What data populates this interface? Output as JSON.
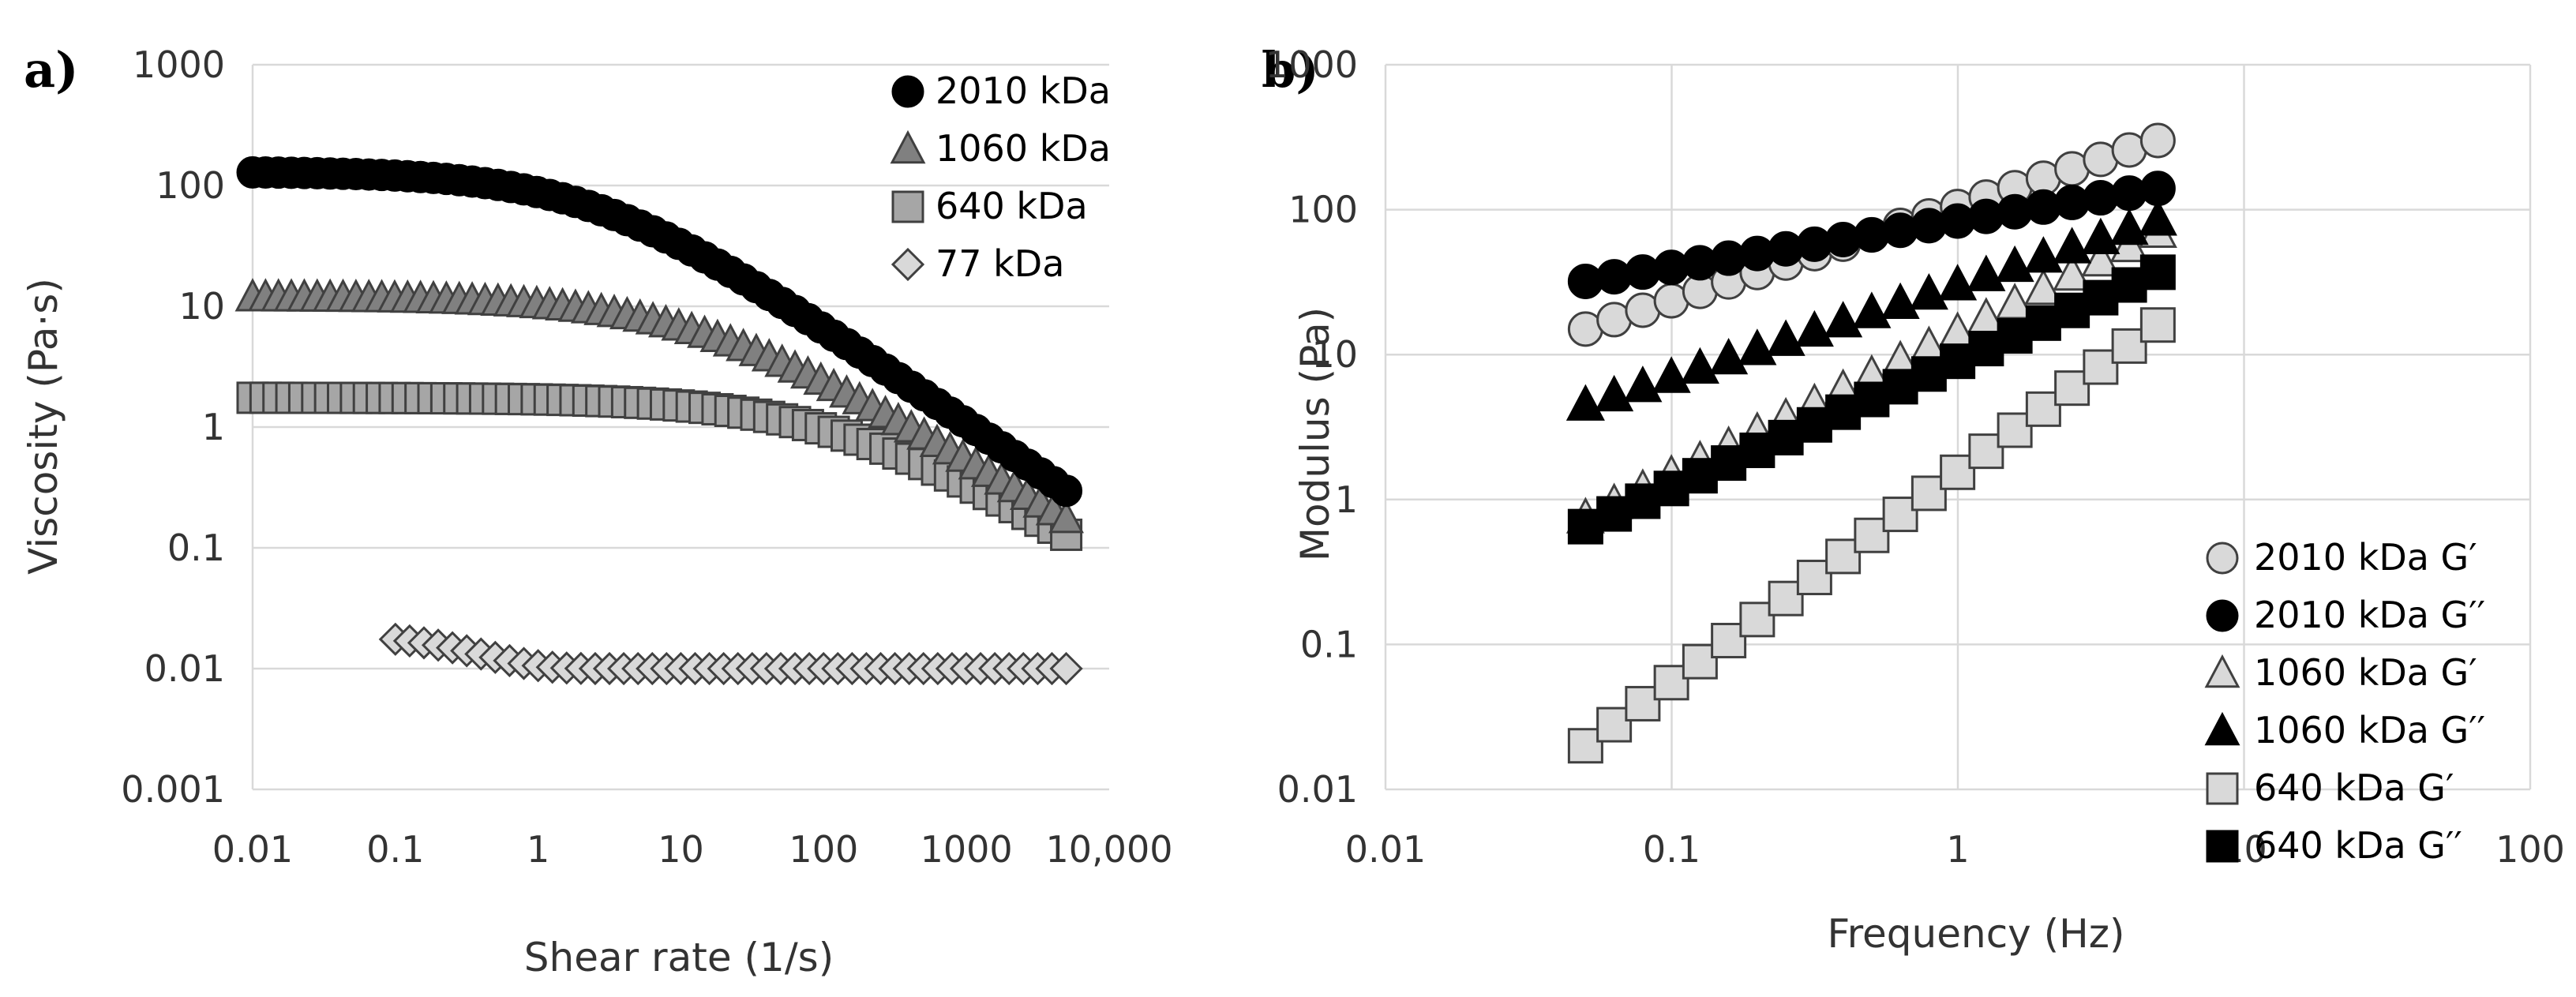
{
  "colors": {
    "black": "#000000",
    "dark_gray": "#808080",
    "mid_gray": "#a6a6a6",
    "light_gray": "#d9d9d9",
    "white": "#ffffff",
    "outline": "#404040"
  },
  "chart_data": [
    {
      "id": "a",
      "panel_label": "a)",
      "type": "scatter",
      "xscale": "log",
      "yscale": "log",
      "xlim": [
        0.01,
        10000
      ],
      "ylim": [
        0.001,
        1000
      ],
      "xlabel": "Shear rate (1/s)",
      "ylabel": "Viscosity (Pa·s)",
      "xticks": [
        0.01,
        0.1,
        1,
        10,
        100,
        1000,
        10000
      ],
      "xtick_labels": [
        "0.01",
        "0.1",
        "1",
        "10",
        "100",
        "1000",
        "10,000"
      ],
      "yticks": [
        0.001,
        0.01,
        0.1,
        1,
        10,
        100,
        1000
      ],
      "ytick_labels": [
        "0.001",
        "0.01",
        "0.1",
        "1",
        "10",
        "100",
        "1000"
      ],
      "grid": "horizontal",
      "legend_position": "top-right",
      "series": [
        {
          "name": "2010 kDa",
          "marker": "circle",
          "fill": "#000000",
          "stroke": "#000000",
          "x_range": [
            0.01,
            5000
          ],
          "n": 64,
          "model": "cross",
          "eta0": 130,
          "lambda": 0.4,
          "m": 0.8
        },
        {
          "name": "1060 kDa",
          "marker": "triangle",
          "fill": "#808080",
          "stroke": "#404040",
          "x_range": [
            0.01,
            5000
          ],
          "n": 64,
          "model": "cross",
          "eta0": 12,
          "lambda": 0.07,
          "m": 0.72
        },
        {
          "name": "640 kDa",
          "marker": "square",
          "fill": "#a6a6a6",
          "stroke": "#404040",
          "x_range": [
            0.01,
            5000
          ],
          "n": 64,
          "model": "cross",
          "eta0": 1.75,
          "lambda": 0.0075,
          "m": 0.7
        },
        {
          "name": "77 kDa",
          "marker": "diamond",
          "fill": "#d9d9d9",
          "stroke": "#404040",
          "x_range": [
            0.1,
            5000
          ],
          "n": 48,
          "model": "decay",
          "inf": 0.01,
          "amp": 0.0075,
          "tau": 0.35
        }
      ]
    },
    {
      "id": "b",
      "panel_label": "b)",
      "type": "scatter",
      "xscale": "log",
      "yscale": "log",
      "xlim": [
        0.01,
        100
      ],
      "ylim": [
        0.01,
        1000
      ],
      "xlabel": "Frequency (Hz)",
      "ylabel": "Modulus (Pa)",
      "xticks": [
        0.01,
        0.1,
        1,
        10,
        100
      ],
      "xtick_labels": [
        "0.01",
        "0.1",
        "1",
        "10",
        "100"
      ],
      "yticks": [
        0.01,
        0.1,
        1,
        10,
        100,
        1000
      ],
      "ytick_labels": [
        "0.01",
        "0.1",
        "1",
        "10",
        "100",
        "1000"
      ],
      "grid": "both",
      "legend_position": "bottom-right",
      "series": [
        {
          "name": "2010 kDa G′",
          "marker": "circle",
          "fill": "#d9d9d9",
          "stroke": "#404040",
          "x_range": [
            0.05,
            5
          ],
          "n": 21,
          "model": "power",
          "y_at_start": 15,
          "y_at_end": 300
        },
        {
          "name": "2010 kDa G′′",
          "marker": "circle",
          "fill": "#000000",
          "stroke": "#000000",
          "x_range": [
            0.05,
            5
          ],
          "n": 21,
          "model": "power",
          "y_at_start": 32,
          "y_at_end": 140
        },
        {
          "name": "1060 kDa G′",
          "marker": "triangle",
          "fill": "#d9d9d9",
          "stroke": "#404040",
          "x_range": [
            0.05,
            5
          ],
          "n": 21,
          "model": "power",
          "y_at_start": 0.75,
          "y_at_end": 70
        },
        {
          "name": "1060 kDa G′′",
          "marker": "triangle",
          "fill": "#000000",
          "stroke": "#000000",
          "x_range": [
            0.05,
            5
          ],
          "n": 21,
          "model": "power",
          "y_at_start": 4.5,
          "y_at_end": 85
        },
        {
          "name": "640 kDa G′",
          "marker": "square",
          "fill": "#d9d9d9",
          "stroke": "#404040",
          "x_range": [
            0.05,
            5
          ],
          "n": 21,
          "model": "power",
          "y_at_start": 0.02,
          "y_at_end": 16
        },
        {
          "name": "640 kDa G′′",
          "marker": "square",
          "fill": "#000000",
          "stroke": "#000000",
          "x_range": [
            0.05,
            5
          ],
          "n": 21,
          "model": "power",
          "y_at_start": 0.65,
          "y_at_end": 37
        }
      ]
    }
  ]
}
